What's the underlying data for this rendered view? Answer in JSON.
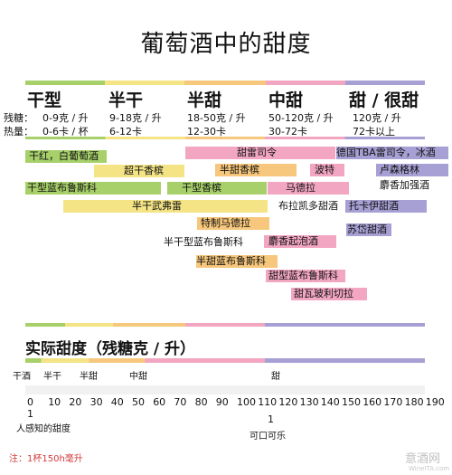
{
  "title": "葡萄酒中的甜度",
  "row_labels": {
    "sugar": "残糖：",
    "calories": "热量："
  },
  "categories": [
    {
      "name": "干型",
      "sugar": "0-9克 / 升",
      "calories": "0-6卡 / 杯",
      "color": "#a7d06b"
    },
    {
      "name": "半干",
      "sugar": "9-18克 / 升",
      "calories": "6-12卡",
      "color": "#f4e486"
    },
    {
      "name": "半甜",
      "sugar": "18-50克 / 升",
      "calories": "12-30卡",
      "color": "#f6c77c"
    },
    {
      "name": "中甜",
      "sugar": "50-120克 / 升",
      "calories": "30-72卡",
      "color": "#f2a6c2"
    },
    {
      "name": "甜 / 很甜",
      "sugar": "120克 / 升",
      "calories": "72卡以上",
      "color": "#a7a0d4"
    }
  ],
  "wines": [
    "干红，白葡萄酒",
    "超干香槟",
    "干型蓝布鲁斯科",
    "半干武弗雷",
    "甜雷司令",
    "半甜香槟",
    "干型香槟",
    "特制马德拉",
    "半干型蓝布鲁斯科",
    "半甜蓝布鲁斯科",
    "波特",
    "马德拉",
    "布拉凯多甜酒",
    "麝香起泡酒",
    "甜型蓝布鲁斯科",
    "甜瓦玻利切拉",
    "德国TBA雷司令，冰酒",
    "卢森格林",
    "麝香加强酒",
    "托卡伊甜酒",
    "苏岱甜酒"
  ],
  "actual": {
    "title": "实际甜度（残糖克 / 升）",
    "labels": [
      "干酒",
      "半干",
      "半甜",
      "中甜",
      "甜"
    ],
    "ticks": [
      "0",
      "10",
      "20",
      "30",
      "40",
      "50",
      "60",
      "70",
      "80",
      "90",
      "100",
      "110",
      "120",
      "130",
      "140",
      "150",
      "160",
      "170",
      "180",
      "190"
    ],
    "markers": [
      {
        "value": "1",
        "caption": "人感知的甜度"
      },
      {
        "value": "1",
        "caption": "可口可乐"
      }
    ]
  },
  "note": "注：1杯150h毫升",
  "watermark": {
    "text": "意酒网",
    "sub": "WineITA.com"
  }
}
